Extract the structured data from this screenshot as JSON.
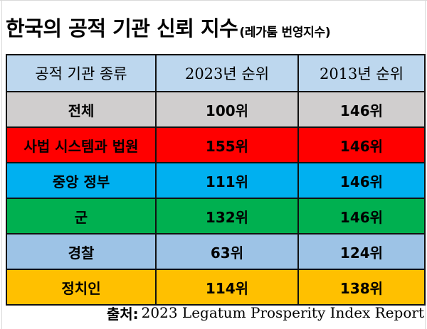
{
  "title": {
    "main": "한국의 공적 기관 신뢰 지수",
    "sub": "(레가툼 번영지수)"
  },
  "table": {
    "headers": [
      "공적 기관 종류",
      "2023년 순위",
      "2013년 순위"
    ],
    "rows": [
      {
        "institution": "전체",
        "rank_2023": "100위",
        "rank_2013": "146위",
        "color": "#d0cece"
      },
      {
        "institution": "사법 시스템과 법원",
        "rank_2023": "155위",
        "rank_2013": "146위",
        "color": "#ff0000"
      },
      {
        "institution": "중앙 정부",
        "rank_2023": "111위",
        "rank_2013": "146위",
        "color": "#00b0f0"
      },
      {
        "institution": "군",
        "rank_2023": "132위",
        "rank_2013": "146위",
        "color": "#00b050"
      },
      {
        "institution": "경찰",
        "rank_2023": "63위",
        "rank_2013": "124위",
        "color": "#9dc3e6"
      },
      {
        "institution": "정치인",
        "rank_2023": "114위",
        "rank_2013": "138위",
        "color": "#ffc000"
      }
    ]
  },
  "source": {
    "label": "출처:",
    "text": "2023 Legatum Prosperity Index Report"
  },
  "colors": {
    "header_bg": "#bdd7ee",
    "border": "#111111"
  }
}
